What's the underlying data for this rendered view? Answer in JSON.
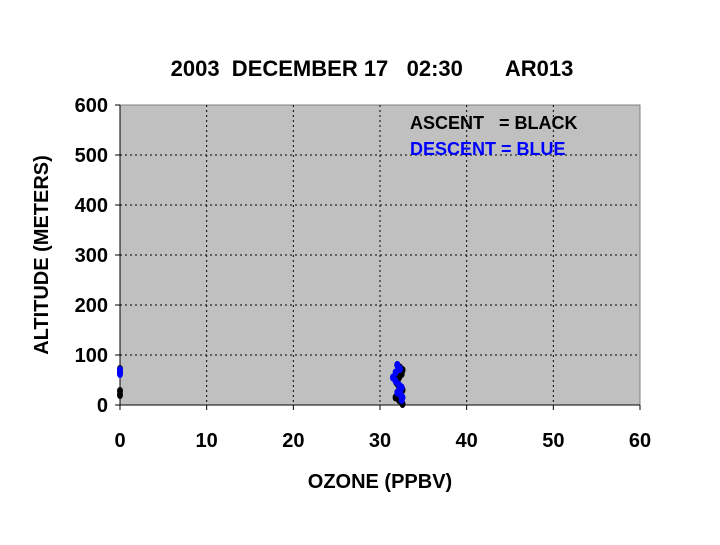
{
  "chart_data": {
    "type": "scatter",
    "title": "2003  DECEMBER 17   02:30       AR013",
    "x_label": "OZONE (PPBV)",
    "y_label": "ALTITUDE (METERS)",
    "xlim": [
      0,
      60
    ],
    "xticks": [
      0,
      10,
      20,
      30,
      40,
      50,
      60
    ],
    "ylim": [
      0,
      600
    ],
    "yticks": [
      0,
      100,
      200,
      300,
      400,
      500,
      600
    ],
    "grid": true,
    "legend": "upper right",
    "series": [
      {
        "name": "ASCENT   = BLACK",
        "color": "#000000",
        "x": [
          0,
          0,
          0,
          0,
          32.0,
          32.3,
          32.6,
          32.5,
          32.2,
          32.0,
          31.9,
          32.1,
          32.4,
          32.6,
          32.3,
          32.0,
          31.8,
          32.2,
          32.5,
          32.6
        ],
        "values": [
          20,
          28,
          65,
          72,
          80,
          75,
          70,
          62,
          55,
          50,
          45,
          40,
          35,
          30,
          25,
          20,
          15,
          10,
          5,
          2
        ]
      },
      {
        "name": "DESCENT = BLUE",
        "color": "#0000ff",
        "x": [
          0,
          0,
          32.0,
          32.3,
          31.8,
          31.5,
          31.8,
          32.2,
          32.5,
          32.3,
          32.0,
          32.4,
          32.6,
          32.5
        ],
        "values": [
          62,
          70,
          80,
          72,
          65,
          55,
          48,
          40,
          35,
          30,
          25,
          20,
          15,
          10
        ]
      }
    ]
  }
}
